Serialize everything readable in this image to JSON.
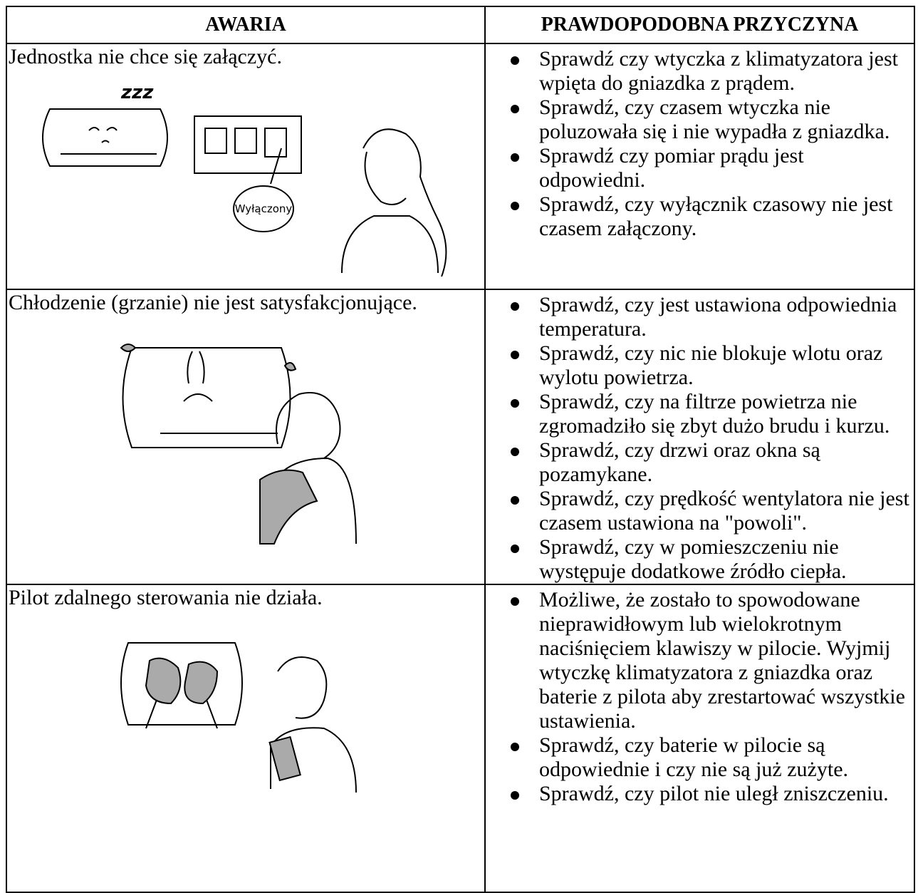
{
  "table": {
    "header": [
      "AWARIA",
      "PRAWDOPODOBNA PRZYCZYNA"
    ],
    "rows": [
      {
        "problem": "Jednostka nie chce się załączyć.",
        "causes": [
          "Sprawdź czy wtyczka z klimatyzatora jest wpięta do gniazdka z prądem.",
          "Sprawdź, czy czasem wtyczka nie poluzowała się i nie wypadła z gniazdka.",
          "Sprawdź czy pomiar prądu jest odpowiedni.",
          "Sprawdź, czy wyłącznik czasowy nie jest czasem załączony."
        ]
      },
      {
        "problem": "Chłodzenie (grzanie) nie jest satysfakcjonujące.",
        "causes": [
          "Sprawdź, czy jest ustawiona odpowiednia temperatura.",
          "Sprawdź, czy nic nie blokuje wlotu oraz wylotu powietrza.",
          "Sprawdź, czy na filtrze powietrza nie zgromadziło się zbyt dużo brudu i kurzu.",
          "Sprawdź, czy drzwi oraz okna są pozamykane.",
          "Sprawdź, czy prędkość wentylatora nie jest czasem ustawiona na \"powoli\".",
          "Sprawdź, czy w pomieszczeniu nie występuje dodatkowe źródło ciepła."
        ]
      },
      {
        "problem": "Pilot zdalnego sterowania nie działa.",
        "causes": [
          "Możliwe, że zostało to spowodowane nieprawidłowym lub wielokrotnym naciśnięciem klawiszy w pilocie. Wyjmij wtyczkę klimatyzatora z gniazdka oraz baterie z pilota aby zrestartować wszystkie ustawienia.",
          "Sprawdź, czy baterie w pilocie są odpowiednie i czy nie są już zużyte.",
          "Sprawdź, czy pilot nie uległ zniszczeniu."
        ]
      }
    ]
  },
  "illustrations": {
    "sleep_label": "zzz",
    "switch_label": "Wyłączony"
  }
}
